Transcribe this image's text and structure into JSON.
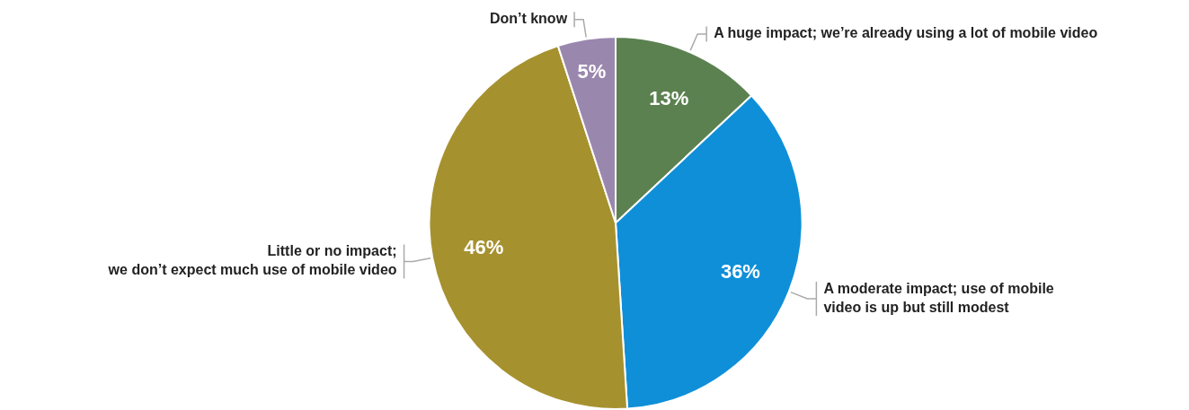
{
  "chart_data": {
    "type": "pie",
    "categories": [
      "A huge impact; we’re already using a lot of mobile video",
      "A moderate impact; use of mobile\nvideo is up but still modest",
      "Little or no impact;\nwe don’t expect much use of mobile video",
      "Don’t know"
    ],
    "values": [
      13,
      36,
      46,
      5
    ],
    "value_labels": [
      "13%",
      "36%",
      "46%",
      "5%"
    ],
    "colors": [
      "#5c8150",
      "#0f8fd8",
      "#a6912f",
      "#9a87ae"
    ],
    "legend": false
  }
}
